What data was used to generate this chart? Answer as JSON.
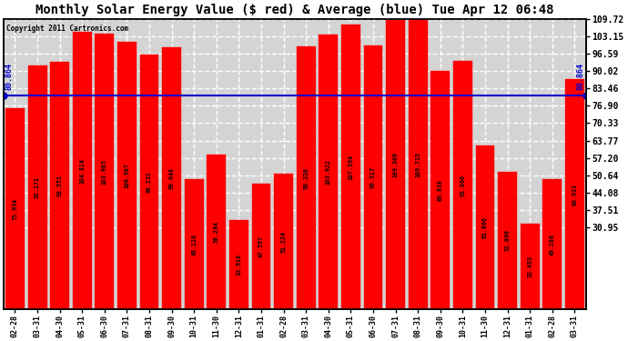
{
  "title": "Monthly Solar Energy Value ($ red) & Average (blue) Tue Apr 12 06:48",
  "copyright": "Copyright 2011 Cartronics.com",
  "categories": [
    "02-28",
    "03-31",
    "04-30",
    "05-31",
    "06-30",
    "07-31",
    "08-31",
    "09-30",
    "10-31",
    "11-30",
    "12-31",
    "01-31",
    "02-28",
    "03-31",
    "04-30",
    "05-31",
    "06-30",
    "07-31",
    "08-31",
    "09-30",
    "10-31",
    "11-30",
    "12-31",
    "01-31",
    "02-28",
    "03-31"
  ],
  "values": [
    75.934,
    92.171,
    93.551,
    104.814,
    103.985,
    100.987,
    96.231,
    99.048,
    49.11,
    58.294,
    33.91,
    47.597,
    51.224,
    99.33,
    103.922,
    107.394,
    99.517,
    109.309,
    109.715,
    89.938,
    93.866,
    61.806,
    52.09,
    32.493,
    49.286,
    86.933
  ],
  "average": 80.864,
  "bar_color": "#ff0000",
  "avg_line_color": "#0000cc",
  "bg_color": "#ffffff",
  "plot_bg_color": "#d4d4d4",
  "grid_color": "#ffffff",
  "title_fontsize": 10,
  "ylabel_right": [
    "109.72",
    "103.15",
    "96.59",
    "90.02",
    "83.46",
    "76.90",
    "70.33",
    "63.77",
    "57.20",
    "50.64",
    "44.08",
    "37.51",
    "30.95"
  ],
  "right_tick_values": [
    109.72,
    103.15,
    96.59,
    90.02,
    83.46,
    76.9,
    70.33,
    63.77,
    57.2,
    50.64,
    44.08,
    37.51,
    30.95
  ],
  "ymin": 0,
  "ymax": 109.72,
  "avg_label": "80.864",
  "title_color": "#000000",
  "copyright_color": "#000000",
  "bar_edge_color": "#ff0000",
  "val_text_color": "#000000"
}
